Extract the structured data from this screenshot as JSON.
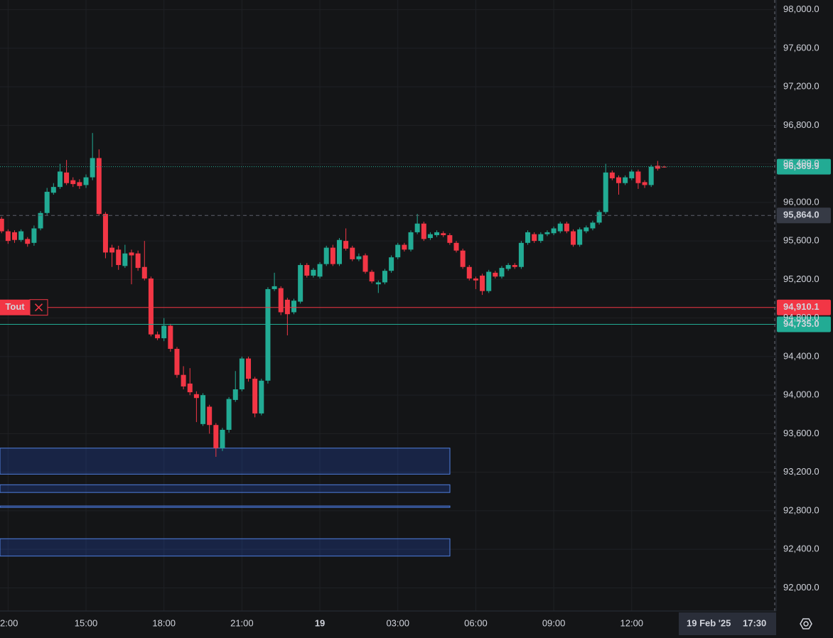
{
  "chart_data": {
    "type": "candlestick",
    "up_color": "#22ab94",
    "down_color": "#f23645",
    "categories": [
      null,
      "2:00",
      null,
      null,
      null,
      null,
      null,
      null,
      null,
      null,
      null,
      null,
      null,
      "15:00",
      null,
      null,
      null,
      null,
      null,
      null,
      null,
      null,
      null,
      null,
      null,
      "18:00",
      null,
      null,
      null,
      null,
      null,
      null,
      null,
      null,
      null,
      null,
      null,
      "21:00",
      null,
      null,
      null,
      null,
      null,
      null,
      null,
      null,
      null,
      null,
      null,
      "19",
      null,
      null,
      null,
      null,
      null,
      null,
      null,
      null,
      null,
      null,
      null,
      "03:00",
      null,
      null,
      null,
      null,
      null,
      null,
      null,
      null,
      null,
      null,
      null,
      "06:00",
      null,
      null,
      null,
      null,
      null,
      null,
      null,
      null,
      null,
      null,
      null,
      "09:00",
      null,
      null,
      null,
      null,
      null,
      null,
      null,
      null,
      null,
      null,
      null,
      "12:00",
      null,
      null,
      null,
      null,
      null
    ],
    "open": [
      95830,
      95700,
      95690,
      95610,
      95620,
      95580,
      95730,
      95890,
      96100,
      96160,
      96310,
      96230,
      96210,
      96180,
      96260,
      96460,
      95880,
      95530,
      95510,
      95340,
      95480,
      95470,
      95330,
      95210,
      94630,
      94590,
      94720,
      94480,
      94210,
      94120,
      94010,
      93700,
      93880,
      93690,
      93450,
      93640,
      93950,
      94060,
      94380,
      94170,
      93810,
      94150,
      95100,
      95110,
      94990,
      94860,
      94970,
      95350,
      95240,
      95230,
      95360,
      95530,
      95360,
      95600,
      95530,
      95410,
      95450,
      95280,
      95150,
      95170,
      95290,
      95430,
      95560,
      95510,
      95690,
      95780,
      95630,
      95660,
      95680,
      95660,
      95580,
      95500,
      95330,
      95210,
      95240,
      95080,
      95270,
      95230,
      95310,
      95350,
      95330,
      95580,
      95670,
      95600,
      95670,
      95680,
      95700,
      95780,
      95700,
      95560,
      95700,
      95730,
      95790,
      95900,
      96310,
      96260,
      96200,
      96250,
      96320,
      96210,
      96180,
      96380,
      96370
    ],
    "high": [
      95850,
      95720,
      95710,
      95720,
      95640,
      95760,
      95910,
      96150,
      96200,
      96400,
      96440,
      96260,
      96240,
      96290,
      96720,
      96550,
      95900,
      95560,
      95550,
      95560,
      95510,
      95500,
      95600,
      95230,
      94660,
      94800,
      94740,
      94500,
      94300,
      94280,
      94040,
      94020,
      93900,
      93710,
      93660,
      93980,
      94250,
      94400,
      94400,
      94190,
      94170,
      95120,
      95270,
      95130,
      95010,
      95000,
      95370,
      95370,
      95320,
      95380,
      95550,
      95560,
      95630,
      95730,
      95550,
      95470,
      95470,
      95300,
      95190,
      95310,
      95450,
      95580,
      95580,
      95710,
      95880,
      95800,
      95690,
      95710,
      95700,
      95680,
      95600,
      95520,
      95350,
      95230,
      95260,
      95300,
      95290,
      95340,
      95370,
      95370,
      95600,
      95710,
      95690,
      95690,
      95710,
      95750,
      95800,
      95800,
      95720,
      95740,
      95760,
      95810,
      95920,
      96400,
      96330,
      96280,
      96280,
      96340,
      96340,
      96230,
      96390,
      96430,
      96380
    ],
    "low": [
      95680,
      95570,
      95580,
      95590,
      95540,
      95550,
      95710,
      95870,
      96080,
      96140,
      96180,
      96160,
      96140,
      96150,
      96230,
      95860,
      95420,
      95330,
      95300,
      95320,
      95150,
      95290,
      95190,
      94610,
      94570,
      94560,
      94450,
      94180,
      94060,
      94000,
      93720,
      93680,
      93600,
      93360,
      93420,
      93610,
      93930,
      94040,
      94140,
      93770,
      93790,
      94120,
      95080,
      94830,
      94620,
      94840,
      94950,
      95220,
      95220,
      95210,
      95340,
      95340,
      95340,
      95500,
      95390,
      95390,
      95260,
      95160,
      95060,
      95150,
      95270,
      95410,
      95490,
      95490,
      95670,
      95600,
      95610,
      95640,
      95640,
      95560,
      95480,
      95310,
      95190,
      95100,
      95040,
      95060,
      95210,
      95210,
      95290,
      95310,
      95310,
      95560,
      95580,
      95580,
      95650,
      95660,
      95680,
      95680,
      95540,
      95540,
      95680,
      95710,
      95770,
      95880,
      96230,
      96080,
      96180,
      96230,
      96140,
      96150,
      96160,
      96330,
      96360
    ],
    "close": [
      95700,
      95600,
      95610,
      95700,
      95570,
      95730,
      95890,
      96110,
      96160,
      96320,
      96200,
      96190,
      96170,
      96260,
      96460,
      95880,
      95480,
      95480,
      95350,
      95470,
      95450,
      95320,
      95210,
      94630,
      94590,
      94720,
      94480,
      94210,
      94090,
      94030,
      93970,
      94000,
      93690,
      93450,
      93640,
      93960,
      94060,
      94380,
      94170,
      93810,
      94150,
      95100,
      95130,
      94860,
      94840,
      94980,
      95350,
      95240,
      95300,
      95360,
      95530,
      95360,
      95610,
      95520,
      95410,
      95440,
      95280,
      95180,
      95170,
      95290,
      95430,
      95560,
      95510,
      95690,
      95780,
      95620,
      95670,
      95690,
      95660,
      95580,
      95500,
      95330,
      95210,
      95190,
      95080,
      95280,
      95230,
      95320,
      95350,
      95330,
      95580,
      95690,
      95600,
      95670,
      95690,
      95730,
      95780,
      95700,
      95560,
      95720,
      95740,
      95790,
      95900,
      96310,
      96250,
      96200,
      96260,
      96320,
      96200,
      96180,
      96370,
      96350,
      96369.9
    ],
    "ylim": [
      91760,
      98100
    ],
    "yticks": [
      {
        "value": 92000,
        "label": "92,000.0"
      },
      {
        "value": 92400,
        "label": "92,400.0"
      },
      {
        "value": 92800,
        "label": "92,800.0"
      },
      {
        "value": 93200,
        "label": "93,200.0"
      },
      {
        "value": 93600,
        "label": "93,600.0"
      },
      {
        "value": 94000,
        "label": "94,000.0"
      },
      {
        "value": 94400,
        "label": "94,400.0"
      },
      {
        "value": 94800,
        "label": "94,800.0"
      },
      {
        "value": 95200,
        "label": "95,200.0"
      },
      {
        "value": 95600,
        "label": "95,600.0"
      },
      {
        "value": 96000,
        "label": "96,000.0"
      },
      {
        "value": 96400,
        "label": "96,400.0"
      },
      {
        "value": 96800,
        "label": "96,800.0"
      },
      {
        "value": 97200,
        "label": "97,200.0"
      },
      {
        "value": 97600,
        "label": "97,600.0"
      },
      {
        "value": 98000,
        "label": "98,000.0"
      }
    ],
    "grid": true,
    "price_lines": [
      {
        "price": {
          "value": 96369.9,
          "label": "96,369.9"
        },
        "color": "#22ab94",
        "label_color": "#131722",
        "style": "dotted"
      },
      {
        "price": {
          "value": 95864.0,
          "label": "95,864.0"
        },
        "color": "#5d606b",
        "label_color": "#ffffff",
        "style": "dashed",
        "box_color": "#363a45"
      },
      {
        "price": {
          "value": 94910.1,
          "label": "94,910.1"
        },
        "color": "#f23645",
        "label_color": "#ffffff",
        "style": "solid",
        "name": "Tout"
      },
      {
        "price": {
          "value": 94735.0,
          "label": "94,735.0"
        },
        "color": "#22ab94",
        "label_color": "#131722",
        "style": "solid"
      }
    ],
    "zones": [
      {
        "top": 93450,
        "bottom": 93180
      },
      {
        "top": 93070,
        "bottom": 92990
      },
      {
        "top": 92850,
        "bottom": 92835
      },
      {
        "top": 92510,
        "bottom": 92330
      }
    ],
    "crosshair": {
      "date": "19 Feb '25",
      "time": "17:30"
    }
  }
}
